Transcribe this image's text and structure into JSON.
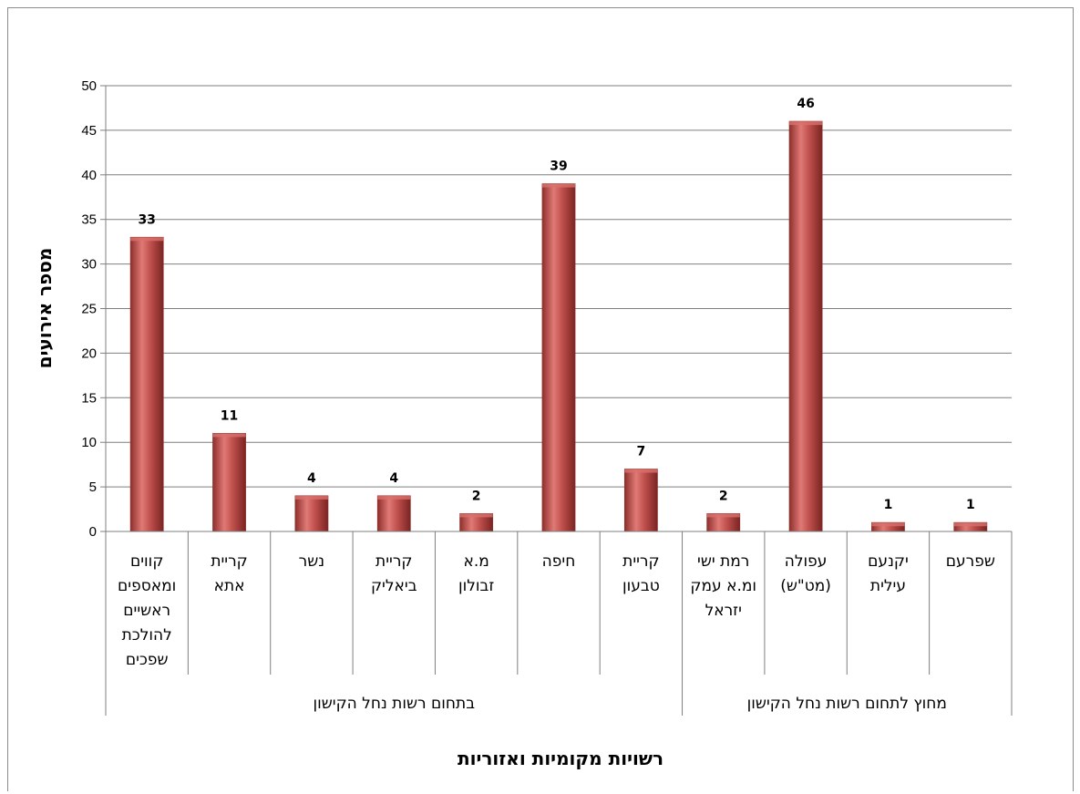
{
  "chart_data": {
    "type": "bar",
    "title": "",
    "xlabel": "רשויות מקומיות ואזוריות",
    "ylabel": "מספר אירועים",
    "ylim": [
      0,
      50
    ],
    "yticks": [
      0,
      5,
      10,
      15,
      20,
      25,
      30,
      35,
      40,
      45,
      50
    ],
    "grid": true,
    "categories": [
      [
        "קווים",
        "ומאספים",
        "ראשיים",
        "להולכת",
        "שפכים"
      ],
      [
        "קריית",
        "אתא"
      ],
      [
        "נשר"
      ],
      [
        "קריית",
        "ביאליק"
      ],
      [
        "מ.א",
        "זבולון"
      ],
      [
        "חיפה"
      ],
      [
        "קריית",
        "טבעון"
      ],
      [
        "רמת ישי",
        "ומ.א עמק",
        "יזראל"
      ],
      [
        "עפולה",
        "(מט\"ש)"
      ],
      [
        "יקנעם",
        "עילית"
      ],
      [
        "שפרעם"
      ]
    ],
    "values": [
      33,
      11,
      4,
      4,
      2,
      39,
      7,
      2,
      46,
      1,
      1
    ],
    "groups": [
      {
        "label": "בתחום רשות נחל הקישון",
        "start": 0,
        "end": 6
      },
      {
        "label": "מחוץ לתחום רשות נחל הקישון",
        "start": 7,
        "end": 10
      }
    ],
    "colors": {
      "bar": "#c0504d",
      "grid": "#7f7f7f"
    }
  }
}
